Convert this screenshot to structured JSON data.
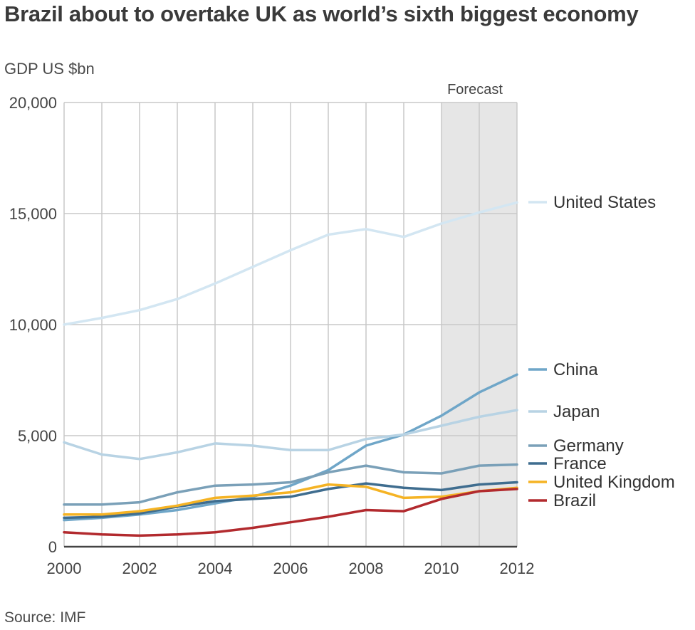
{
  "title": "Brazil about to overtake UK as world’s sixth biggest economy",
  "ylabel": "GDP US $bn",
  "source": "Source: IMF",
  "chart_data": {
    "type": "line",
    "x": [
      2000,
      2001,
      2002,
      2003,
      2004,
      2005,
      2006,
      2007,
      2008,
      2009,
      2010,
      2011,
      2012
    ],
    "xticks": [
      "2000",
      "2002",
      "2004",
      "2006",
      "2008",
      "2010",
      "2012"
    ],
    "yticks": [
      "0",
      "5,000",
      "10,000",
      "15,000",
      "20,000"
    ],
    "ylim": [
      0,
      20000
    ],
    "xlim": [
      2000,
      2012
    ],
    "grid": true,
    "forecast": {
      "label": "Forecast",
      "from": 2010,
      "to": 2012,
      "color": "#e6e6e6"
    },
    "series": [
      {
        "name": "United States",
        "color": "#d3e6f2",
        "values": [
          10000,
          10300,
          10650,
          11150,
          11850,
          12600,
          13350,
          14050,
          14300,
          13950,
          14550,
          15050,
          15500
        ]
      },
      {
        "name": "China",
        "color": "#6fa6c8",
        "values": [
          1200,
          1300,
          1450,
          1650,
          1950,
          2250,
          2750,
          3450,
          4550,
          5050,
          5900,
          6950,
          7750
        ]
      },
      {
        "name": "Japan",
        "color": "#b8d3e4",
        "values": [
          4700,
          4150,
          3950,
          4250,
          4650,
          4550,
          4350,
          4350,
          4850,
          5050,
          5450,
          5850,
          6150
        ]
      },
      {
        "name": "Germany",
        "color": "#7aa0b8",
        "values": [
          1900,
          1900,
          2000,
          2450,
          2750,
          2800,
          2900,
          3350,
          3650,
          3350,
          3300,
          3650,
          3700
        ]
      },
      {
        "name": "France",
        "color": "#3f6d8f",
        "values": [
          1300,
          1350,
          1500,
          1800,
          2050,
          2150,
          2250,
          2600,
          2850,
          2650,
          2550,
          2800,
          2900
        ]
      },
      {
        "name": "United Kingdom",
        "color": "#f5b324",
        "values": [
          1450,
          1450,
          1600,
          1850,
          2200,
          2300,
          2450,
          2800,
          2700,
          2200,
          2250,
          2500,
          2650
        ]
      },
      {
        "name": "Brazil",
        "color": "#b22a2e",
        "values": [
          650,
          550,
          500,
          550,
          650,
          850,
          1100,
          1350,
          1650,
          1600,
          2150,
          2500,
          2600
        ]
      }
    ]
  }
}
